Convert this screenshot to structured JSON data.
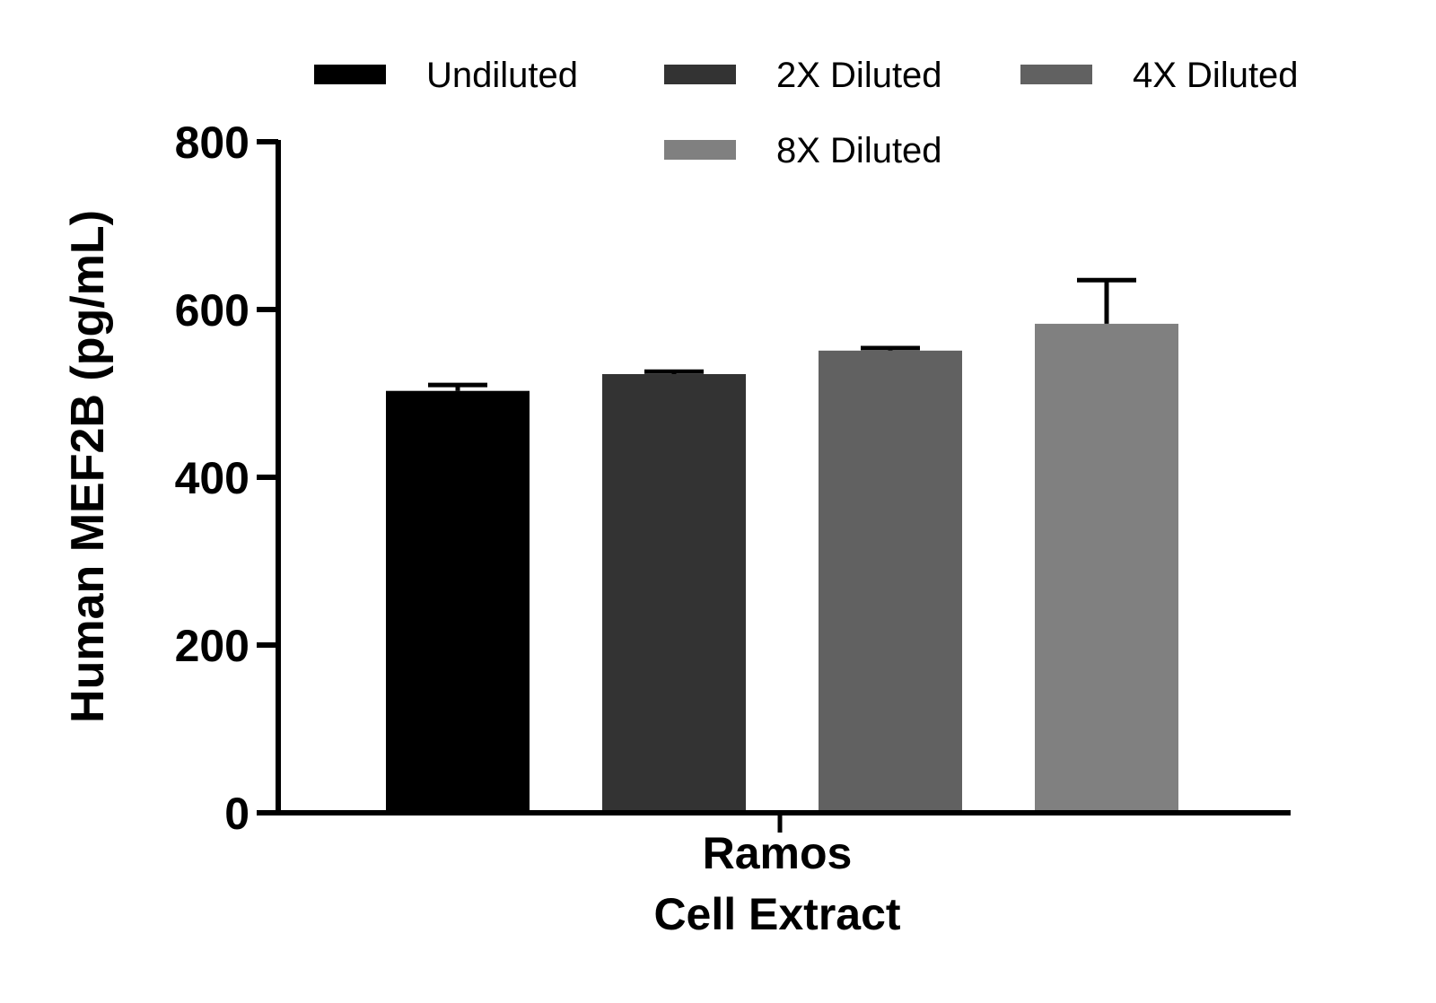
{
  "chart_data": {
    "type": "bar",
    "ylabel": "Human MEF2B (pg/mL)",
    "category_lines": [
      "Ramos",
      "Cell Extract"
    ],
    "ylim": [
      0,
      800
    ],
    "yticks": [
      0,
      200,
      400,
      600,
      800
    ],
    "legend_position": "top",
    "series": [
      {
        "name": "Undiluted",
        "value": 503,
        "error": 7,
        "color": "#000000"
      },
      {
        "name": "2X Diluted",
        "value": 523,
        "error": 3,
        "color": "#333333"
      },
      {
        "name": "4X Diluted",
        "value": 551,
        "error": 3,
        "color": "#616161"
      },
      {
        "name": "8X Diluted",
        "value": 583,
        "error": 52,
        "color": "#808080"
      }
    ]
  }
}
